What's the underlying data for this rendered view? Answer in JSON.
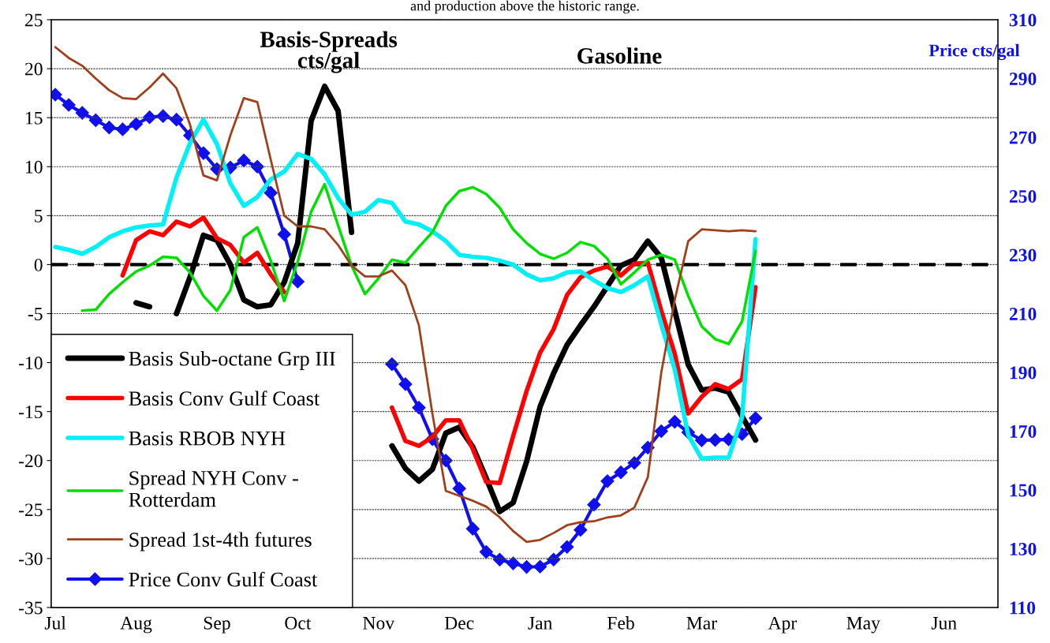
{
  "chart_data": {
    "type": "line",
    "title": "Gasoline",
    "ylabel": "Basis-Spreads\ncts/gal",
    "y2label": "Price cts/gal",
    "annotations": [
      "and production above the historic range."
    ],
    "categories": [
      "Jul",
      null,
      null,
      null,
      null,
      null,
      "Aug",
      null,
      null,
      null,
      null,
      null,
      "Sep",
      null,
      null,
      null,
      null,
      null,
      "Oct",
      null,
      null,
      null,
      null,
      null,
      "Nov",
      null,
      null,
      null,
      null,
      null,
      "Dec",
      null,
      null,
      null,
      null,
      null,
      "Jan",
      null,
      null,
      null,
      null,
      null,
      "Feb",
      null,
      null,
      null,
      null,
      null,
      "Mar",
      null,
      null,
      null,
      null,
      null,
      "Apr",
      null,
      null,
      null,
      null,
      null,
      "May",
      null,
      null,
      null,
      null,
      null,
      "Jun",
      null,
      null,
      null
    ],
    "ylim": [
      -35,
      25
    ],
    "yticks": [
      -35,
      -30,
      -25,
      -20,
      -15,
      -10,
      -5,
      0,
      5,
      10,
      15,
      20,
      25
    ],
    "y2lim": [
      110,
      310
    ],
    "y2ticks": [
      110,
      130,
      150,
      170,
      190,
      210,
      230,
      250,
      270,
      290,
      310
    ],
    "grid": "y",
    "legend": "bottom left",
    "ref_lines": [
      {
        "axis": "y",
        "value": 0,
        "color": "#000000",
        "line_style": "dashed"
      }
    ],
    "series": [
      {
        "name": "Basis Sub-octane Grp III",
        "color": "#000000",
        "values": [
          null,
          null,
          null,
          null,
          null,
          null,
          -3.9,
          -4.3,
          null,
          -5.0,
          -1.3,
          3.0,
          2.5,
          0.0,
          -3.6,
          -4.3,
          -4.1,
          -1.8,
          2.2,
          14.7,
          18.2,
          15.7,
          3.3,
          null,
          null,
          -18.5,
          -20.8,
          -22.1,
          -20.9,
          -17.2,
          -16.6,
          -18.6,
          -21.8,
          -25.2,
          -24.3,
          -20.1,
          -14.5,
          -11.1,
          -8.2,
          -6.2,
          -4.3,
          -2.2,
          -0.1,
          0.5,
          2.4,
          0.7,
          -4.7,
          -10.2,
          -12.8,
          -12.6,
          -13.0,
          -15.5,
          -17.9,
          null,
          null,
          null,
          null,
          null,
          null,
          null,
          null,
          null,
          null,
          null,
          null,
          null,
          null,
          null,
          null,
          null
        ]
      },
      {
        "name": "Basis Conv Gulf Coast",
        "color": "#ff0000",
        "values": [
          null,
          null,
          null,
          null,
          null,
          -1.1,
          2.5,
          3.4,
          3.0,
          4.4,
          3.9,
          4.8,
          2.7,
          2.0,
          0.2,
          1.2,
          -1.0,
          -2.8,
          null,
          null,
          null,
          null,
          null,
          null,
          null,
          -14.6,
          -18.0,
          -18.5,
          -17.6,
          -15.9,
          -15.9,
          -18.8,
          -22.2,
          -22.3,
          -17.5,
          -12.9,
          -9.0,
          -6.6,
          -3.1,
          -1.3,
          -0.6,
          -0.2,
          -1.1,
          0.1,
          0.2,
          -4.7,
          -9.1,
          -15.2,
          -13.5,
          -12.2,
          -12.7,
          -11.7,
          -2.3,
          null,
          null,
          null,
          null,
          null,
          null,
          null,
          null,
          null,
          null,
          null,
          null,
          null,
          null,
          null,
          null,
          null
        ]
      },
      {
        "name": "Basis RBOB NYH",
        "color": "#00f0f8",
        "values": [
          1.8,
          1.5,
          1.1,
          1.8,
          2.8,
          3.4,
          3.8,
          4.0,
          4.1,
          8.9,
          12.4,
          14.8,
          12.3,
          8.3,
          6.0,
          6.9,
          8.7,
          9.5,
          11.3,
          10.8,
          9.2,
          6.8,
          5.1,
          5.4,
          6.6,
          6.3,
          4.4,
          4.1,
          3.4,
          2.4,
          1.0,
          0.8,
          0.7,
          0.4,
          0.0,
          -1.0,
          -1.6,
          -1.4,
          -0.8,
          -0.7,
          -1.6,
          -2.4,
          -2.8,
          -2.1,
          -1.2,
          -6.1,
          -10.7,
          -17.4,
          -19.8,
          -19.7,
          -19.7,
          -15.6,
          2.6,
          null,
          null,
          null,
          null,
          null,
          null,
          null,
          null,
          null,
          null,
          null,
          null,
          null,
          null,
          null,
          null,
          null
        ]
      },
      {
        "name": "Spread NYH Conv -\nRotterdam",
        "color": "#00e000",
        "values": [
          null,
          null,
          -4.7,
          -4.6,
          -3.0,
          -1.8,
          -0.7,
          -0.1,
          0.8,
          0.7,
          -0.8,
          -3.2,
          -4.7,
          -2.6,
          2.8,
          3.8,
          0.4,
          -3.7,
          0.3,
          5.4,
          8.2,
          4.0,
          -0.1,
          -3.0,
          -1.4,
          0.5,
          0.2,
          1.8,
          3.3,
          6.0,
          7.5,
          7.9,
          7.2,
          5.8,
          3.6,
          2.2,
          1.1,
          0.6,
          1.2,
          2.3,
          1.9,
          0.6,
          -2.0,
          -0.8,
          0.5,
          1.0,
          0.5,
          -3.2,
          -6.3,
          -7.6,
          -8.1,
          -5.8,
          1.4,
          null,
          null,
          null,
          null,
          null,
          null,
          null,
          null,
          null,
          null,
          null,
          null,
          null,
          null,
          null,
          null,
          null
        ]
      },
      {
        "name": "Spread 1st-4th futures",
        "color": "#a0401a",
        "values": [
          22.2,
          21.1,
          20.3,
          19.0,
          17.8,
          17.0,
          16.9,
          18.1,
          19.5,
          18.0,
          14.3,
          9.1,
          8.6,
          13.2,
          17.0,
          16.6,
          10.7,
          5.0,
          3.9,
          3.9,
          3.6,
          2.0,
          -0.1,
          -1.2,
          -1.2,
          -0.6,
          -2.1,
          -6.2,
          -15.2,
          -23.1,
          -23.6,
          -24.1,
          -24.7,
          -25.8,
          -27.2,
          -28.3,
          -28.1,
          -27.4,
          -26.6,
          -26.3,
          -26.2,
          -25.8,
          -25.6,
          -24.8,
          -21.7,
          -11.0,
          -3.6,
          2.4,
          3.6,
          3.5,
          3.4,
          3.5,
          3.4,
          null,
          null,
          null,
          null,
          null,
          null,
          null,
          null,
          null,
          null,
          null,
          null,
          null,
          null,
          null,
          null,
          null
        ]
      },
      {
        "name": "Price Conv Gulf Coast",
        "color": "#1010ee",
        "axis": "y2",
        "marker": "diamond",
        "values": [
          284.5,
          281.0,
          278.3,
          275.8,
          273.3,
          272.7,
          274.5,
          276.8,
          277.2,
          276.0,
          270.6,
          264.6,
          259.2,
          259.7,
          262.1,
          260.0,
          251.1,
          237.0,
          220.9,
          null,
          null,
          null,
          null,
          null,
          null,
          192.8,
          186.0,
          178.0,
          167.3,
          160.0,
          150.5,
          136.8,
          128.9,
          126.3,
          125.0,
          123.8,
          123.9,
          126.3,
          130.6,
          136.4,
          145.0,
          153.0,
          156.0,
          159.2,
          164.4,
          170.0,
          173.2,
          169.6,
          166.9,
          167.0,
          167.2,
          169.0,
          174.4,
          null,
          null,
          null,
          null,
          null,
          null,
          null,
          null,
          null,
          null,
          null,
          null,
          null,
          null,
          null,
          null,
          null
        ]
      }
    ]
  }
}
